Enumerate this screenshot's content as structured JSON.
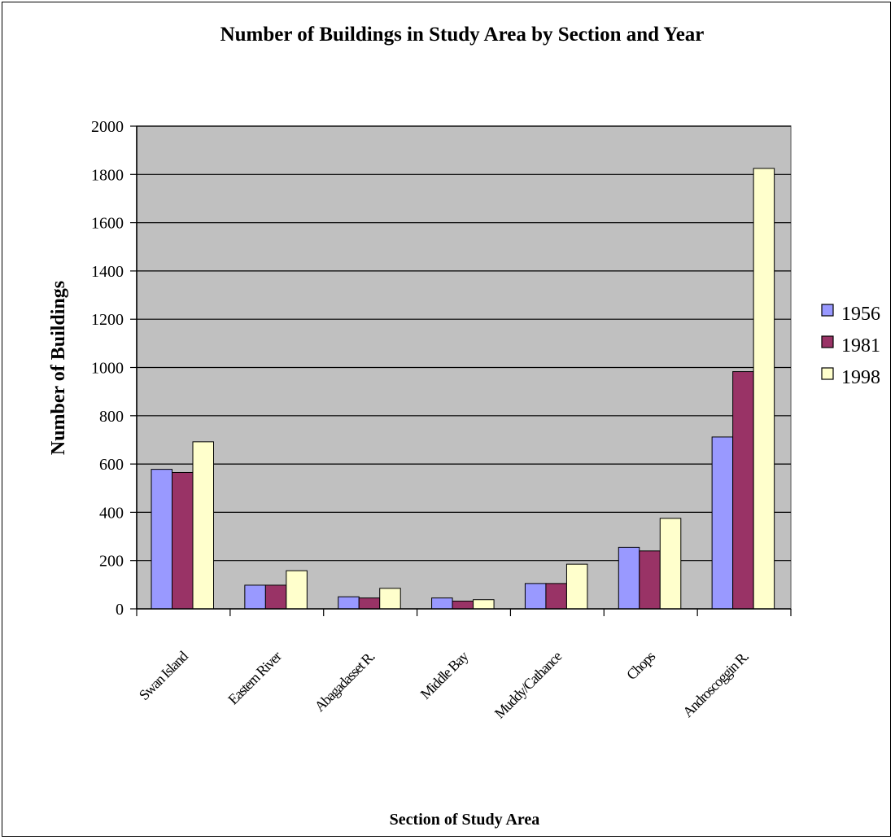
{
  "chart_data": {
    "type": "bar",
    "title": "Number of Buildings in Study Area by Section and Year",
    "xlabel": "Section of Study Area",
    "ylabel": "Number of Buildings",
    "ylim": [
      0,
      2000
    ],
    "yticks": [
      0,
      200,
      400,
      600,
      800,
      1000,
      1200,
      1400,
      1600,
      1800,
      2000
    ],
    "grid": true,
    "legend_position": "right",
    "categories": [
      "Swan Island",
      "Eastern River",
      "Abagadasset R.",
      "Middle Bay",
      "Muddy/Cathance",
      "Chops",
      "Androscoggin R."
    ],
    "series": [
      {
        "name": "1956",
        "color": "#9999ff",
        "values": [
          578,
          98,
          50,
          45,
          105,
          255,
          712
        ]
      },
      {
        "name": "1981",
        "color": "#993366",
        "values": [
          565,
          98,
          45,
          32,
          105,
          240,
          983
        ]
      },
      {
        "name": "1998",
        "color": "#ffffcc",
        "values": [
          692,
          158,
          85,
          38,
          185,
          375,
          1825
        ]
      }
    ],
    "plot_background": "#c0c0c0"
  }
}
